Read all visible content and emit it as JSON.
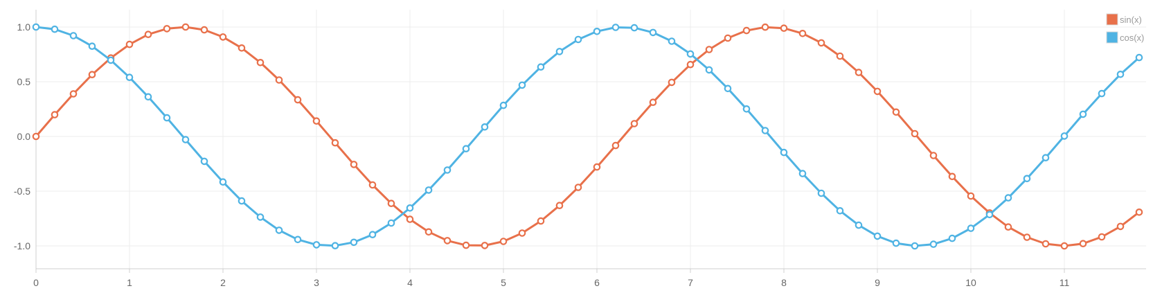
{
  "chart_data": {
    "type": "line",
    "title": "",
    "xlabel": "",
    "ylabel": "",
    "xlim": [
      0,
      11.9
    ],
    "ylim": [
      -1.1,
      1.1
    ],
    "x_ticks": [
      0,
      1,
      2,
      3,
      4,
      5,
      6,
      7,
      8,
      9,
      10,
      11
    ],
    "x_tick_labels": [
      "0",
      "1",
      "2",
      "3",
      "4",
      "5",
      "6",
      "7",
      "8",
      "9",
      "10",
      "11"
    ],
    "y_ticks": [
      1.0,
      0.5,
      0.0,
      -0.5,
      -1.0
    ],
    "y_tick_labels": [
      "1.0",
      "0.5",
      "0.0",
      "-0.5",
      "-1.0"
    ],
    "grid": true,
    "legend_position": "top-right",
    "x": [
      0,
      0.2,
      0.4,
      0.6,
      0.8,
      1.0,
      1.2,
      1.4,
      1.6,
      1.8,
      2.0,
      2.2,
      2.4,
      2.6,
      2.8,
      3.0,
      3.2,
      3.4,
      3.6,
      3.8,
      4.0,
      4.2,
      4.4,
      4.6,
      4.8,
      5.0,
      5.2,
      5.4,
      5.6,
      5.8,
      6.0,
      6.2,
      6.4,
      6.6,
      6.8,
      7.0,
      7.2,
      7.4,
      7.6,
      7.8,
      8.0,
      8.2,
      8.4,
      8.6,
      8.8,
      9.0,
      9.2,
      9.4,
      9.6,
      9.8,
      10.0,
      10.2,
      10.4,
      10.6,
      10.8,
      11.0,
      11.2,
      11.4,
      11.6,
      11.8
    ],
    "series": [
      {
        "name": "sin(x)",
        "color": "#e8704a",
        "values": [
          0,
          0.199,
          0.389,
          0.565,
          0.717,
          0.841,
          0.932,
          0.985,
          1.0,
          0.974,
          0.909,
          0.808,
          0.675,
          0.516,
          0.335,
          0.141,
          -0.058,
          -0.256,
          -0.443,
          -0.612,
          -0.757,
          -0.872,
          -0.952,
          -0.994,
          -0.996,
          -0.959,
          -0.883,
          -0.773,
          -0.631,
          -0.465,
          -0.279,
          -0.083,
          0.117,
          0.312,
          0.494,
          0.657,
          0.794,
          0.899,
          0.968,
          0.999,
          0.989,
          0.941,
          0.855,
          0.734,
          0.585,
          0.412,
          0.223,
          0.025,
          -0.174,
          -0.366,
          -0.544,
          -0.699,
          -0.827,
          -0.921,
          -0.981,
          -1.0,
          -0.979,
          -0.918,
          -0.822,
          -0.692
        ]
      },
      {
        "name": "cos(x)",
        "color": "#4fb3e3",
        "values": [
          1,
          0.98,
          0.921,
          0.825,
          0.697,
          0.54,
          0.362,
          0.17,
          -0.029,
          -0.227,
          -0.416,
          -0.589,
          -0.737,
          -0.857,
          -0.942,
          -0.99,
          -0.998,
          -0.967,
          -0.897,
          -0.791,
          -0.654,
          -0.49,
          -0.307,
          -0.112,
          0.087,
          0.284,
          0.469,
          0.635,
          0.776,
          0.886,
          0.96,
          0.997,
          0.993,
          0.95,
          0.87,
          0.754,
          0.608,
          0.438,
          0.251,
          0.054,
          -0.146,
          -0.339,
          -0.519,
          -0.679,
          -0.811,
          -0.911,
          -0.975,
          -1.0,
          -0.985,
          -0.931,
          -0.839,
          -0.714,
          -0.561,
          -0.385,
          -0.194,
          0.004,
          0.203,
          0.392,
          0.568,
          0.721
        ]
      }
    ]
  }
}
